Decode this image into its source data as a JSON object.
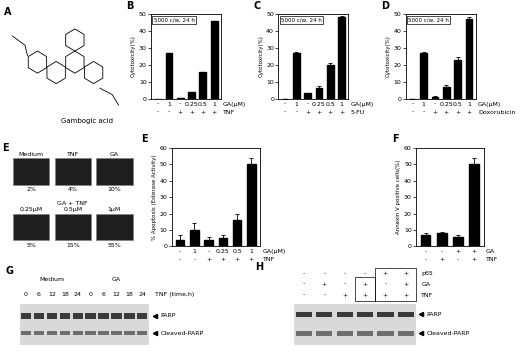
{
  "panels": {
    "A": {
      "label": "A",
      "compound": "Gambogic acid"
    },
    "E_images": {
      "label": "E",
      "top": [
        {
          "title": "Medium",
          "value": "2%"
        },
        {
          "title": "TNF",
          "value": "4%"
        },
        {
          "title": "GA",
          "value": "10%"
        }
      ],
      "bottom_title": "GA + TNF",
      "bottom": [
        {
          "title": "0.25μM",
          "value": "5%"
        },
        {
          "title": "0.5μM",
          "value": "15%"
        },
        {
          "title": "1μM",
          "value": "55%"
        }
      ]
    },
    "G": {
      "label": "G",
      "groups": [
        "Medium",
        "GA"
      ],
      "lane_title": "TNF (time,h)",
      "lanes": [
        "0",
        "6",
        "12",
        "18",
        "24",
        "0",
        "6",
        "12",
        "18",
        "24"
      ],
      "bands": [
        "PARP",
        "Cleaved-PARP"
      ]
    },
    "H": {
      "label": "H",
      "rows": [
        {
          "label": "p65",
          "values": [
            "-",
            "-",
            "-",
            "-",
            "+",
            "+"
          ]
        },
        {
          "label": "GA",
          "values": [
            "-",
            "+",
            "-",
            "+",
            "-",
            "+"
          ]
        },
        {
          "label": "TNF",
          "values": [
            "-",
            "-",
            "+",
            "+",
            "+",
            "+"
          ]
        }
      ],
      "bands": [
        "PARP",
        "Cleaved-PARP"
      ]
    }
  },
  "chart_data": [
    {
      "panel": "B",
      "type": "bar",
      "inset": "5000 c/w, 24 h",
      "y_label": "Cytotoxicity(%)",
      "categories": [
        null,
        null,
        null,
        null,
        null,
        null
      ],
      "values": [
        0,
        27,
        0.5,
        4,
        16,
        46
      ],
      "color": "#000000",
      "ylim": [
        0,
        50
      ],
      "yticks": [
        0,
        10,
        20,
        30,
        40,
        50
      ],
      "tick_labels": "y",
      "conditions": [
        {
          "label": "GA(μM)",
          "values": [
            "-",
            "1",
            "-",
            "0.25",
            "0.5",
            "1"
          ]
        },
        {
          "label": "TNF",
          "values": [
            "-",
            "-",
            "+",
            "+",
            "+",
            "+"
          ]
        }
      ]
    },
    {
      "panel": "C",
      "type": "bar",
      "inset": "5000 c/w, 24 h",
      "y_label": "Cytotoxicity(%)",
      "categories": [
        null,
        null,
        null,
        null,
        null,
        null
      ],
      "values": [
        0,
        27,
        3,
        6,
        20,
        48
      ],
      "errors": [
        0,
        0.5,
        0.5,
        1.5,
        1,
        1
      ],
      "color": "#000000",
      "ylim": [
        0,
        50
      ],
      "yticks": [
        0,
        10,
        20,
        30,
        40,
        50
      ],
      "tick_labels": "y",
      "conditions": [
        {
          "label": "GA(μM)",
          "values": [
            "-",
            "1",
            "-",
            "0.25",
            "0.5",
            "1"
          ]
        },
        {
          "label": "5-FU",
          "values": [
            "-",
            "-",
            "+",
            "+",
            "+",
            "+"
          ]
        }
      ]
    },
    {
      "panel": "D",
      "type": "bar",
      "inset": "5000 c/w, 24 h",
      "y_label": "Cytotoxicity(%)",
      "categories": [
        null,
        null,
        null,
        null,
        null,
        null
      ],
      "values": [
        0,
        27,
        1,
        7,
        23,
        47
      ],
      "errors": [
        0,
        0.5,
        0.5,
        1,
        1.5,
        1.5
      ],
      "color": "#000000",
      "ylim": [
        0,
        50
      ],
      "yticks": [
        0,
        10,
        20,
        30,
        40,
        50
      ],
      "tick_labels": "y",
      "conditions": [
        {
          "label": "GA(μM)",
          "values": [
            "-",
            "1",
            "-",
            "0.25",
            "0.5",
            "1"
          ]
        },
        {
          "label": "Doxorubicin",
          "values": [
            "-",
            "-",
            "+",
            "+",
            "+",
            "+"
          ]
        }
      ]
    },
    {
      "panel": "E",
      "type": "bar",
      "y_label": "% Apoptosis (Esterase Activity)",
      "categories": [
        null,
        null,
        null,
        null,
        null,
        null
      ],
      "values": [
        4,
        10,
        4,
        5,
        16,
        50
      ],
      "errors": [
        3,
        4,
        2,
        2,
        4,
        4
      ],
      "color": "#000000",
      "ylim": [
        0,
        60
      ],
      "yticks": [
        0,
        10,
        20,
        30,
        40,
        50,
        60
      ],
      "tick_labels": "y",
      "conditions": [
        {
          "label": "GA(μM)",
          "values": [
            "-",
            "1",
            "-",
            "0.25",
            "0.5",
            "1"
          ]
        },
        {
          "label": "TNF",
          "values": [
            "-",
            "-",
            "+",
            "+",
            "+",
            "+"
          ]
        }
      ]
    },
    {
      "panel": "F",
      "type": "bar",
      "y_label": "Annexin V positive cells(%)",
      "categories": [
        null,
        null,
        null,
        null
      ],
      "values": [
        7,
        8,
        6,
        50
      ],
      "errors": [
        1,
        1,
        1,
        4
      ],
      "color": "#000000",
      "ylim": [
        0,
        60
      ],
      "yticks": [
        0,
        10,
        20,
        30,
        40,
        50,
        60
      ],
      "tick_labels": "y",
      "conditions": [
        {
          "label": "GA",
          "values": [
            "-",
            "-",
            "+",
            "+"
          ]
        },
        {
          "label": "TNF",
          "values": [
            "-",
            "+",
            "-",
            "+"
          ]
        }
      ]
    }
  ]
}
